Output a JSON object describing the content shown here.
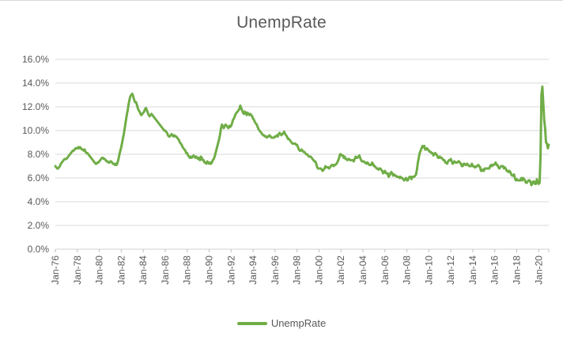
{
  "title": "UnempRate",
  "legend": {
    "series_label": "UnempRate"
  },
  "colors": {
    "series": "#70AD47",
    "gridline": "#D9D9D9",
    "axis": "#D0D0D0",
    "tick": "#BFBFBF",
    "text": "#595959",
    "background": "#FFFFFF"
  },
  "chart_data": {
    "type": "line",
    "title": "UnempRate",
    "xlabel": "",
    "ylabel": "",
    "unit": "percent",
    "grid": true,
    "legend_position": "bottom",
    "ylim": [
      0,
      16
    ],
    "y_tick_step": 2,
    "y_tick_labels": [
      "0.0%",
      "2.0%",
      "4.0%",
      "6.0%",
      "8.0%",
      "10.0%",
      "12.0%",
      "14.0%",
      "16.0%"
    ],
    "x_tick_interval_months": 24,
    "x_tick_labels": [
      "Jan-76",
      "Jan-78",
      "Jan-80",
      "Jan-82",
      "Jan-84",
      "Jan-86",
      "Jan-88",
      "Jan-90",
      "Jan-92",
      "Jan-94",
      "Jan-96",
      "Jan-98",
      "Jan-00",
      "Jan-02",
      "Jan-04",
      "Jan-06",
      "Jan-08",
      "Jan-10",
      "Jan-12",
      "Jan-14",
      "Jan-16",
      "Jan-18",
      "Jan-20"
    ],
    "x_start": "Jan-1976",
    "x_end": "Dec-2020",
    "series": [
      {
        "name": "UnempRate",
        "monthly_values_by_year": {
          "1976": [
            7.0,
            6.9,
            6.8,
            6.8,
            6.9,
            7.0,
            7.2,
            7.3,
            7.4,
            7.5,
            7.6,
            7.6
          ],
          "1977": [
            7.6,
            7.7,
            7.8,
            7.9,
            8.0,
            8.1,
            8.2,
            8.3,
            8.3,
            8.4,
            8.5,
            8.5
          ],
          "1978": [
            8.5,
            8.6,
            8.5,
            8.6,
            8.5,
            8.4,
            8.4,
            8.3,
            8.4,
            8.2,
            8.1,
            8.1
          ],
          "1979": [
            8.0,
            7.9,
            7.8,
            7.7,
            7.6,
            7.5,
            7.4,
            7.3,
            7.2,
            7.2,
            7.3,
            7.3
          ],
          "1980": [
            7.4,
            7.5,
            7.6,
            7.7,
            7.7,
            7.6,
            7.6,
            7.5,
            7.4,
            7.4,
            7.3,
            7.3
          ],
          "1981": [
            7.4,
            7.4,
            7.3,
            7.2,
            7.2,
            7.1,
            7.2,
            7.1,
            7.3,
            7.6,
            8.0,
            8.3
          ],
          "1982": [
            8.6,
            9.0,
            9.4,
            9.8,
            10.3,
            10.8,
            11.3,
            11.7,
            12.2,
            12.6,
            12.9,
            13.0
          ],
          "1983": [
            13.1,
            12.9,
            12.6,
            12.4,
            12.4,
            12.2,
            11.9,
            11.7,
            11.6,
            11.4,
            11.3,
            11.4
          ],
          "1984": [
            11.5,
            11.6,
            11.8,
            11.9,
            11.7,
            11.5,
            11.3,
            11.2,
            11.3,
            11.4,
            11.3,
            11.2
          ],
          "1985": [
            11.1,
            11.0,
            10.9,
            10.8,
            10.7,
            10.6,
            10.5,
            10.4,
            10.3,
            10.2,
            10.1,
            10.0
          ],
          "1986": [
            10.0,
            9.9,
            9.8,
            9.6,
            9.5,
            9.5,
            9.6,
            9.7,
            9.6,
            9.5,
            9.6,
            9.5
          ],
          "1987": [
            9.5,
            9.4,
            9.3,
            9.2,
            9.0,
            8.9,
            8.8,
            8.6,
            8.5,
            8.4,
            8.3,
            8.1
          ],
          "1988": [
            8.1,
            7.9,
            7.8,
            7.7,
            7.8,
            7.7,
            7.8,
            7.9,
            7.8,
            7.7,
            7.8,
            7.7
          ],
          "1989": [
            7.6,
            7.7,
            7.5,
            7.8,
            7.7,
            7.5,
            7.5,
            7.3,
            7.3,
            7.2,
            7.4,
            7.3
          ],
          "1990": [
            7.2,
            7.3,
            7.2,
            7.3,
            7.5,
            7.6,
            7.8,
            8.1,
            8.4,
            8.7,
            9.0,
            9.3
          ],
          "1991": [
            9.7,
            10.2,
            10.5,
            10.3,
            10.2,
            10.4,
            10.5,
            10.4,
            10.3,
            10.2,
            10.4,
            10.3
          ],
          "1992": [
            10.4,
            10.6,
            10.9,
            11.0,
            11.2,
            11.4,
            11.5,
            11.6,
            11.7,
            11.8,
            12.1,
            11.9
          ],
          "1993": [
            11.7,
            11.5,
            11.4,
            11.6,
            11.5,
            11.3,
            11.5,
            11.4,
            11.3,
            11.4,
            11.3,
            11.2
          ],
          "1994": [
            11.0,
            10.9,
            10.7,
            10.6,
            10.5,
            10.3,
            10.1,
            10.0,
            9.9,
            9.8,
            9.7,
            9.6
          ],
          "1995": [
            9.6,
            9.5,
            9.5,
            9.4,
            9.5,
            9.5,
            9.6,
            9.5,
            9.4,
            9.4,
            9.4,
            9.4
          ],
          "1996": [
            9.5,
            9.5,
            9.6,
            9.5,
            9.7,
            9.8,
            9.7,
            9.6,
            9.7,
            9.8,
            9.9,
            9.7
          ],
          "1997": [
            9.6,
            9.5,
            9.3,
            9.3,
            9.2,
            9.1,
            9.0,
            8.9,
            8.9,
            8.9,
            8.9,
            8.8
          ],
          "1998": [
            8.8,
            8.6,
            8.4,
            8.3,
            8.3,
            8.4,
            8.3,
            8.2,
            8.2,
            8.1,
            8.0,
            8.0
          ],
          "1999": [
            7.9,
            7.8,
            7.8,
            7.8,
            7.7,
            7.6,
            7.5,
            7.4,
            7.4,
            7.2,
            6.9,
            6.8
          ],
          "2000": [
            6.8,
            6.8,
            6.8,
            6.7,
            6.6,
            6.7,
            6.8,
            7.0,
            6.9,
            6.9,
            6.9,
            6.8
          ],
          "2001": [
            6.9,
            7.0,
            7.1,
            7.1,
            7.0,
            7.1,
            7.1,
            7.2,
            7.3,
            7.5,
            7.7,
            8.0
          ],
          "2002": [
            8.0,
            7.9,
            7.9,
            7.7,
            7.8,
            7.6,
            7.6,
            7.5,
            7.6,
            7.6,
            7.5,
            7.5
          ],
          "2003": [
            7.5,
            7.5,
            7.4,
            7.6,
            7.8,
            7.7,
            7.7,
            7.8,
            7.9,
            7.7,
            7.5,
            7.4
          ],
          "2004": [
            7.4,
            7.4,
            7.3,
            7.3,
            7.2,
            7.3,
            7.2,
            7.1,
            7.1,
            7.1,
            7.3,
            7.2
          ],
          "2005": [
            7.0,
            7.0,
            6.9,
            6.8,
            6.8,
            6.7,
            6.8,
            6.8,
            6.7,
            6.6,
            6.4,
            6.5
          ],
          "2006": [
            6.6,
            6.4,
            6.4,
            6.4,
            6.1,
            6.2,
            6.4,
            6.5,
            6.4,
            6.2,
            6.3,
            6.2
          ],
          "2007": [
            6.2,
            6.1,
            6.1,
            6.1,
            6.0,
            6.1,
            6.0,
            6.0,
            5.9,
            5.8,
            5.9,
            6.0
          ],
          "2008": [
            5.8,
            5.8,
            6.0,
            6.1,
            6.1,
            5.9,
            6.1,
            6.1,
            6.1,
            6.2,
            6.3,
            6.7
          ],
          "2009": [
            7.3,
            7.7,
            8.1,
            8.3,
            8.5,
            8.7,
            8.6,
            8.7,
            8.4,
            8.4,
            8.5,
            8.4
          ],
          "2010": [
            8.3,
            8.2,
            8.2,
            8.1,
            8.1,
            7.9,
            8.0,
            8.1,
            8.0,
            7.9,
            7.7,
            7.7
          ],
          "2011": [
            7.8,
            7.7,
            7.7,
            7.6,
            7.5,
            7.5,
            7.3,
            7.3,
            7.2,
            7.4,
            7.5,
            7.5
          ],
          "2012": [
            7.6,
            7.4,
            7.2,
            7.3,
            7.4,
            7.3,
            7.3,
            7.3,
            7.4,
            7.4,
            7.3,
            7.2
          ],
          "2013": [
            7.0,
            7.0,
            7.2,
            7.2,
            7.1,
            7.1,
            7.2,
            7.1,
            7.0,
            7.0,
            7.0,
            7.2
          ],
          "2014": [
            7.0,
            7.0,
            6.9,
            6.9,
            7.0,
            7.0,
            7.1,
            7.0,
            6.9,
            6.6,
            6.6,
            6.7
          ],
          "2015": [
            6.6,
            6.8,
            6.8,
            6.8,
            6.8,
            6.8,
            6.8,
            7.0,
            7.1,
            7.0,
            7.1,
            7.1
          ],
          "2016": [
            7.2,
            7.3,
            7.1,
            7.1,
            6.9,
            6.8,
            6.9,
            7.0,
            7.0,
            7.0,
            6.8,
            6.9
          ],
          "2017": [
            6.8,
            6.6,
            6.6,
            6.5,
            6.6,
            6.5,
            6.3,
            6.2,
            6.2,
            6.3,
            6.0,
            5.8
          ],
          "2018": [
            5.9,
            5.8,
            5.8,
            5.8,
            5.8,
            6.0,
            5.8,
            6.0,
            5.9,
            5.8,
            5.6,
            5.6
          ],
          "2019": [
            5.7,
            5.8,
            5.8,
            5.7,
            5.4,
            5.5,
            5.7,
            5.7,
            5.5,
            5.5,
            5.9,
            5.6
          ],
          "2020": [
            5.5,
            5.6,
            7.8,
            13.0,
            13.7,
            12.3,
            10.9,
            10.2,
            9.0,
            8.9,
            8.5,
            8.8
          ]
        }
      }
    ]
  }
}
